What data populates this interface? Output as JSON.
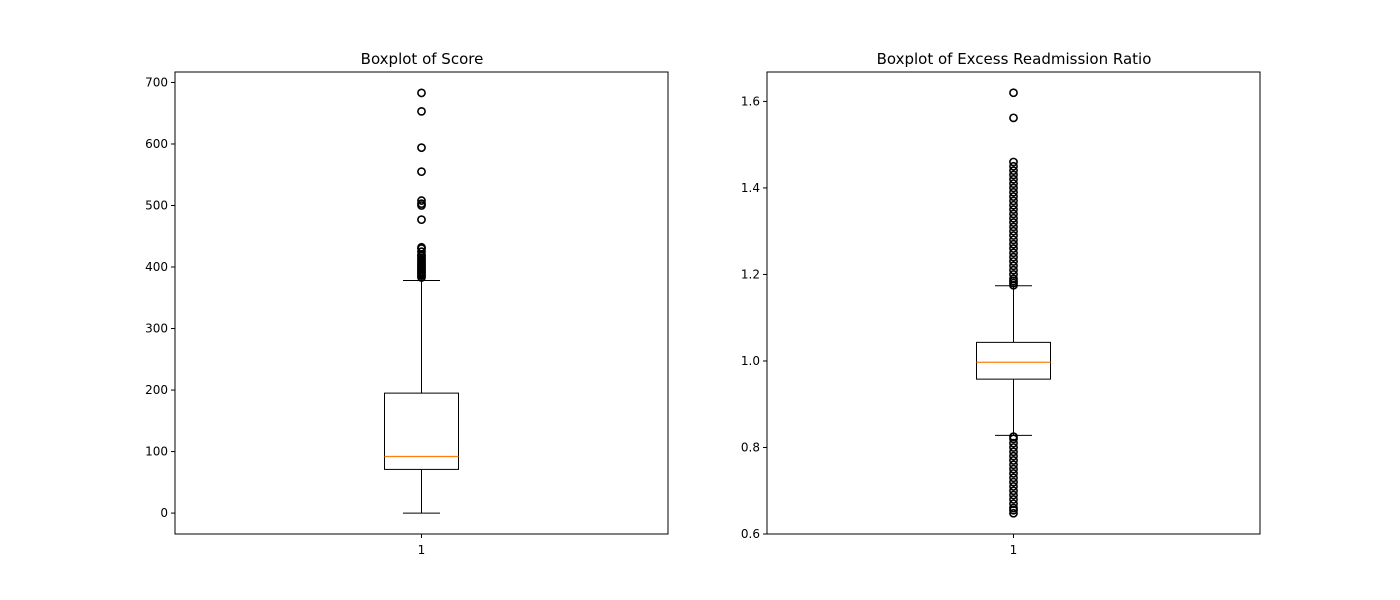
{
  "chart_data": [
    {
      "type": "boxplot",
      "title": "Boxplot of Score",
      "xlabel": "",
      "ylabel": "",
      "categories": [
        "1"
      ],
      "ylim": [
        -34,
        717
      ],
      "yticks": [
        0,
        100,
        200,
        300,
        400,
        500,
        600,
        700
      ],
      "ytick_labels": [
        "0",
        "100",
        "200",
        "300",
        "400",
        "500",
        "600",
        "700"
      ],
      "box": {
        "whisker_low": 0,
        "q1": 71,
        "median": 92,
        "q3": 195,
        "whisker_high": 378
      },
      "outliers": [
        383,
        386,
        388,
        390,
        392,
        395,
        397,
        399,
        401,
        403,
        405,
        408,
        410,
        412,
        415,
        418,
        420,
        425,
        430,
        432,
        477,
        500,
        503,
        508,
        555,
        594,
        653,
        683
      ],
      "colors": {
        "box": "#000000",
        "median": "#ff7f0e",
        "outlier": "#000000"
      },
      "grid": false
    },
    {
      "type": "boxplot",
      "title": "Boxplot of Excess Readmission Ratio",
      "xlabel": "",
      "ylabel": "",
      "categories": [
        "1"
      ],
      "ylim": [
        0.6,
        1.668
      ],
      "yticks": [
        0.6,
        0.8,
        1.0,
        1.2,
        1.4,
        1.6
      ],
      "ytick_labels": [
        "0.6",
        "0.8",
        "1.0",
        "1.2",
        "1.4",
        "1.6"
      ],
      "box": {
        "whisker_low": 0.828,
        "q1": 0.958,
        "median": 0.997,
        "q3": 1.043,
        "whisker_high": 1.174
      },
      "outliers": [
        1.175,
        1.18,
        1.185,
        1.19,
        1.2,
        1.21,
        1.22,
        1.23,
        1.24,
        1.25,
        1.26,
        1.27,
        1.28,
        1.29,
        1.3,
        1.31,
        1.32,
        1.33,
        1.34,
        1.35,
        1.36,
        1.37,
        1.38,
        1.39,
        1.4,
        1.41,
        1.42,
        1.43,
        1.44,
        1.45,
        1.46,
        1.562,
        1.62,
        0.825,
        0.82,
        0.81,
        0.8,
        0.79,
        0.78,
        0.77,
        0.76,
        0.75,
        0.74,
        0.73,
        0.72,
        0.71,
        0.7,
        0.69,
        0.68,
        0.67,
        0.66,
        0.655,
        0.648
      ],
      "colors": {
        "box": "#000000",
        "median": "#ff7f0e",
        "outlier": "#000000"
      },
      "grid": false
    }
  ]
}
